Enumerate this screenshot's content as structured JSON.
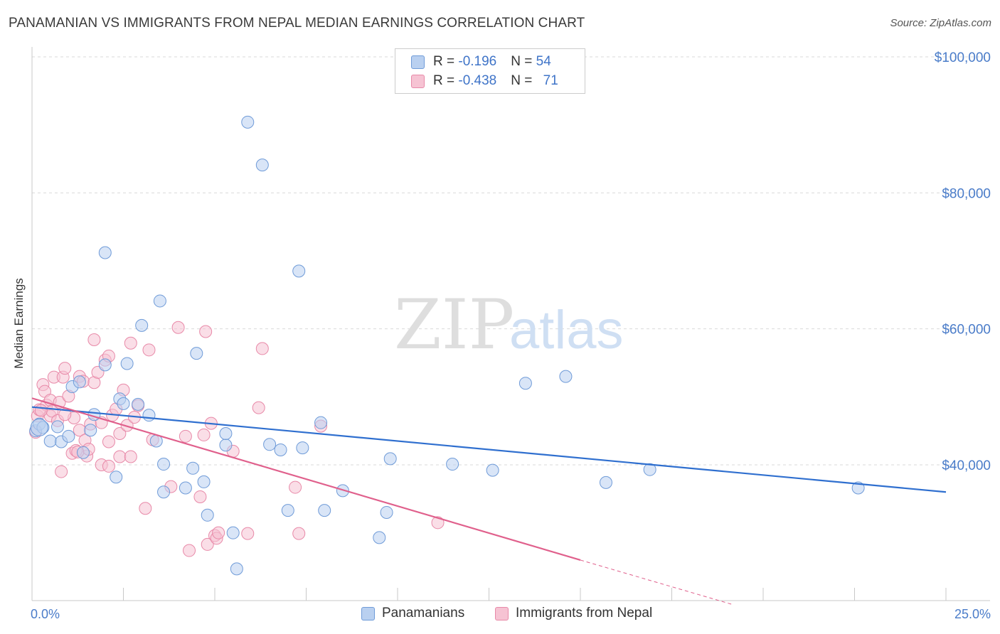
{
  "title": "PANAMANIAN VS IMMIGRANTS FROM NEPAL MEDIAN EARNINGS CORRELATION CHART",
  "source": "Source: ZipAtlas.com",
  "watermark": {
    "part1": "ZIP",
    "part2": "atlas"
  },
  "colors": {
    "blue_fill": "#b9d0f0",
    "blue_stroke": "#6f9bd8",
    "blue_line": "#2f6fcf",
    "pink_fill": "#f6c3d3",
    "pink_stroke": "#e889a8",
    "pink_line": "#e0608c",
    "axis_text": "#4a7cc9",
    "grid": "#d9d9d9"
  },
  "legend": {
    "rows": [
      {
        "r_label": "R = ",
        "r_value": "-0.196",
        "n_label": "N = ",
        "n_value": "54"
      },
      {
        "r_label": "R = ",
        "r_value": "-0.438",
        "n_label": "N = ",
        "n_value": "71"
      }
    ]
  },
  "bottom_legend": [
    "Panamanians",
    "Immigrants from Nepal"
  ],
  "chart_data": {
    "type": "scatter",
    "title": "PANAMANIAN VS IMMIGRANTS FROM NEPAL MEDIAN EARNINGS CORRELATION CHART",
    "xlabel": "",
    "ylabel": "Median Earnings",
    "xlim": [
      0,
      25
    ],
    "ylim": [
      22000,
      102000
    ],
    "x_tick_labels": [
      "0.0%",
      "25.0%"
    ],
    "y_ticks": [
      40000,
      60000,
      80000,
      100000
    ],
    "y_tick_labels": [
      "$40,000",
      "$60,000",
      "$80,000",
      "$100,000"
    ],
    "grid": true,
    "legend_position": "top-center",
    "series": [
      {
        "name": "Panamanians",
        "r": -0.196,
        "n": 54,
        "trend": {
          "x": [
            0,
            25
          ],
          "y": [
            48500,
            36000
          ]
        },
        "points": [
          [
            0.1,
            45000
          ],
          [
            0.2,
            46000
          ],
          [
            0.3,
            45500
          ],
          [
            0.5,
            43500
          ],
          [
            0.7,
            45600
          ],
          [
            0.8,
            43400
          ],
          [
            1.0,
            44200
          ],
          [
            1.1,
            51500
          ],
          [
            1.3,
            52200
          ],
          [
            1.4,
            41800
          ],
          [
            1.6,
            45100
          ],
          [
            1.7,
            47400
          ],
          [
            2.0,
            54700
          ],
          [
            2.0,
            71200
          ],
          [
            2.3,
            38200
          ],
          [
            2.4,
            49700
          ],
          [
            2.5,
            49000
          ],
          [
            2.6,
            54900
          ],
          [
            2.9,
            48900
          ],
          [
            3.0,
            60500
          ],
          [
            3.2,
            47300
          ],
          [
            3.4,
            43500
          ],
          [
            3.5,
            64100
          ],
          [
            3.6,
            36000
          ],
          [
            3.6,
            40100
          ],
          [
            4.2,
            36600
          ],
          [
            4.4,
            39500
          ],
          [
            4.5,
            56400
          ],
          [
            4.7,
            37500
          ],
          [
            4.8,
            32600
          ],
          [
            5.3,
            42900
          ],
          [
            5.3,
            44600
          ],
          [
            5.5,
            30000
          ],
          [
            5.6,
            24700
          ],
          [
            5.9,
            90400
          ],
          [
            6.3,
            84100
          ],
          [
            6.5,
            43000
          ],
          [
            6.8,
            42200
          ],
          [
            7.0,
            33300
          ],
          [
            7.3,
            68500
          ],
          [
            7.4,
            42500
          ],
          [
            7.9,
            46200
          ],
          [
            8.0,
            33300
          ],
          [
            8.5,
            36200
          ],
          [
            9.5,
            29300
          ],
          [
            9.7,
            33000
          ],
          [
            9.8,
            40900
          ],
          [
            11.5,
            40100
          ],
          [
            12.6,
            39200
          ],
          [
            13.5,
            52000
          ],
          [
            14.6,
            53000
          ],
          [
            15.7,
            37400
          ],
          [
            16.9,
            39300
          ],
          [
            22.6,
            36600
          ]
        ]
      },
      {
        "name": "Immigrants from Nepal",
        "r": -0.438,
        "n": 71,
        "trend": {
          "x": [
            0,
            15
          ],
          "y": [
            49800,
            26000
          ]
        },
        "trend_dashed": {
          "x": [
            15,
            19.2
          ],
          "y": [
            26000,
            19400
          ]
        },
        "points": [
          [
            0.1,
            44800
          ],
          [
            0.15,
            47200
          ],
          [
            0.2,
            48100
          ],
          [
            0.3,
            51800
          ],
          [
            0.35,
            50800
          ],
          [
            0.4,
            48800
          ],
          [
            0.5,
            47200
          ],
          [
            0.5,
            49500
          ],
          [
            0.55,
            47900
          ],
          [
            0.6,
            52900
          ],
          [
            0.7,
            46500
          ],
          [
            0.75,
            49200
          ],
          [
            0.8,
            39000
          ],
          [
            0.85,
            52900
          ],
          [
            0.9,
            54200
          ],
          [
            1.0,
            50100
          ],
          [
            1.1,
            41700
          ],
          [
            1.15,
            46900
          ],
          [
            1.2,
            42100
          ],
          [
            1.3,
            53000
          ],
          [
            1.3,
            45100
          ],
          [
            1.4,
            52300
          ],
          [
            1.45,
            43600
          ],
          [
            1.5,
            41300
          ],
          [
            1.55,
            42300
          ],
          [
            1.6,
            46000
          ],
          [
            1.7,
            58400
          ],
          [
            1.7,
            52100
          ],
          [
            1.8,
            53600
          ],
          [
            1.9,
            46200
          ],
          [
            1.9,
            40000
          ],
          [
            2.0,
            55400
          ],
          [
            2.1,
            56000
          ],
          [
            2.1,
            43400
          ],
          [
            2.1,
            39800
          ],
          [
            2.2,
            47300
          ],
          [
            2.3,
            48200
          ],
          [
            2.4,
            41200
          ],
          [
            2.4,
            44600
          ],
          [
            2.5,
            51000
          ],
          [
            2.6,
            45800
          ],
          [
            2.7,
            57900
          ],
          [
            2.7,
            41200
          ],
          [
            2.8,
            47000
          ],
          [
            2.9,
            48700
          ],
          [
            3.1,
            33600
          ],
          [
            3.2,
            56900
          ],
          [
            3.3,
            43700
          ],
          [
            3.8,
            36800
          ],
          [
            4.0,
            60200
          ],
          [
            4.2,
            44200
          ],
          [
            4.3,
            27400
          ],
          [
            4.6,
            35300
          ],
          [
            4.7,
            44400
          ],
          [
            4.75,
            59600
          ],
          [
            4.8,
            28300
          ],
          [
            4.9,
            46100
          ],
          [
            5.0,
            29600
          ],
          [
            5.05,
            29200
          ],
          [
            5.1,
            30000
          ],
          [
            5.5,
            42000
          ],
          [
            5.9,
            29900
          ],
          [
            6.2,
            48400
          ],
          [
            6.3,
            57100
          ],
          [
            7.2,
            36700
          ],
          [
            7.3,
            29900
          ],
          [
            7.9,
            45700
          ],
          [
            11.1,
            31500
          ],
          [
            1.25,
            41900
          ],
          [
            0.9,
            47400
          ],
          [
            0.25,
            48000
          ]
        ]
      }
    ]
  }
}
